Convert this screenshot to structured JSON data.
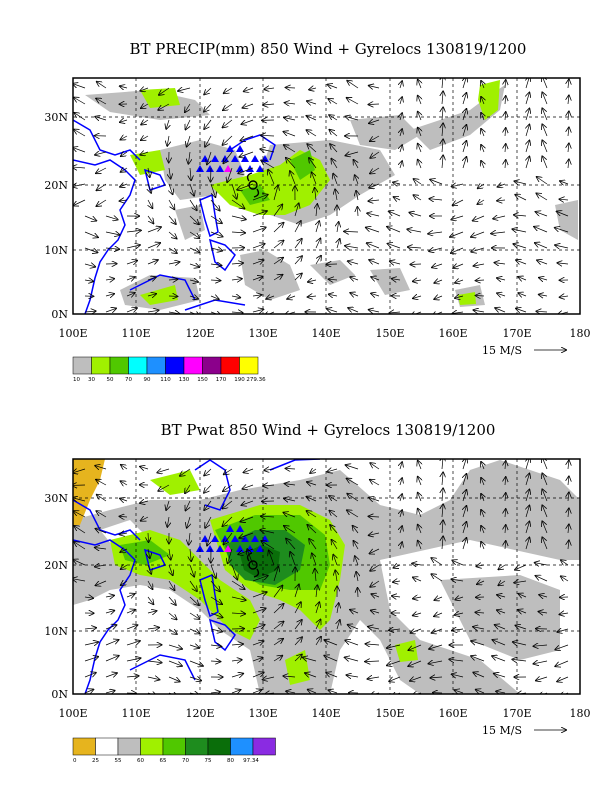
{
  "panels": [
    {
      "title": "BT PRECIP(mm) 850 Wind + Gyrelocs 130819/1200",
      "lon_labels": [
        "100E",
        "110E",
        "120E",
        "130E",
        "140E",
        "150E",
        "160E",
        "170E",
        "180"
      ],
      "lat_labels": [
        "0N",
        "10N",
        "20N",
        "30N"
      ],
      "vector_scale": "15 M/S",
      "legend_colors": [
        "#bebebe",
        "#a0f000",
        "#50c800",
        "#00ffff",
        "#1e90ff",
        "#0000ff",
        "#ff00ff",
        "#8b008b",
        "#ff0000",
        "#ffff00"
      ],
      "legend_labels": [
        "10",
        "30",
        "50",
        "70",
        "90",
        "110",
        "130",
        "150",
        "170",
        "190",
        "279.36"
      ]
    },
    {
      "title": "BT Pwat 850 Wind + Gyrelocs 130819/1200",
      "lon_labels": [
        "100E",
        "110E",
        "120E",
        "130E",
        "140E",
        "150E",
        "160E",
        "170E",
        "180"
      ],
      "lat_labels": [
        "0N",
        "10N",
        "20N",
        "30N"
      ],
      "vector_scale": "15 M/S",
      "legend_colors": [
        "#e6b41e",
        "#ffffff",
        "#bebebe",
        "#a0f000",
        "#50c800",
        "#1e8c1e",
        "#0a6e0a",
        "#1e90ff",
        "#8a2be2"
      ],
      "legend_labels": [
        "0",
        "25",
        "55",
        "60",
        "65",
        "70",
        "75",
        "80",
        "97.34"
      ]
    }
  ]
}
